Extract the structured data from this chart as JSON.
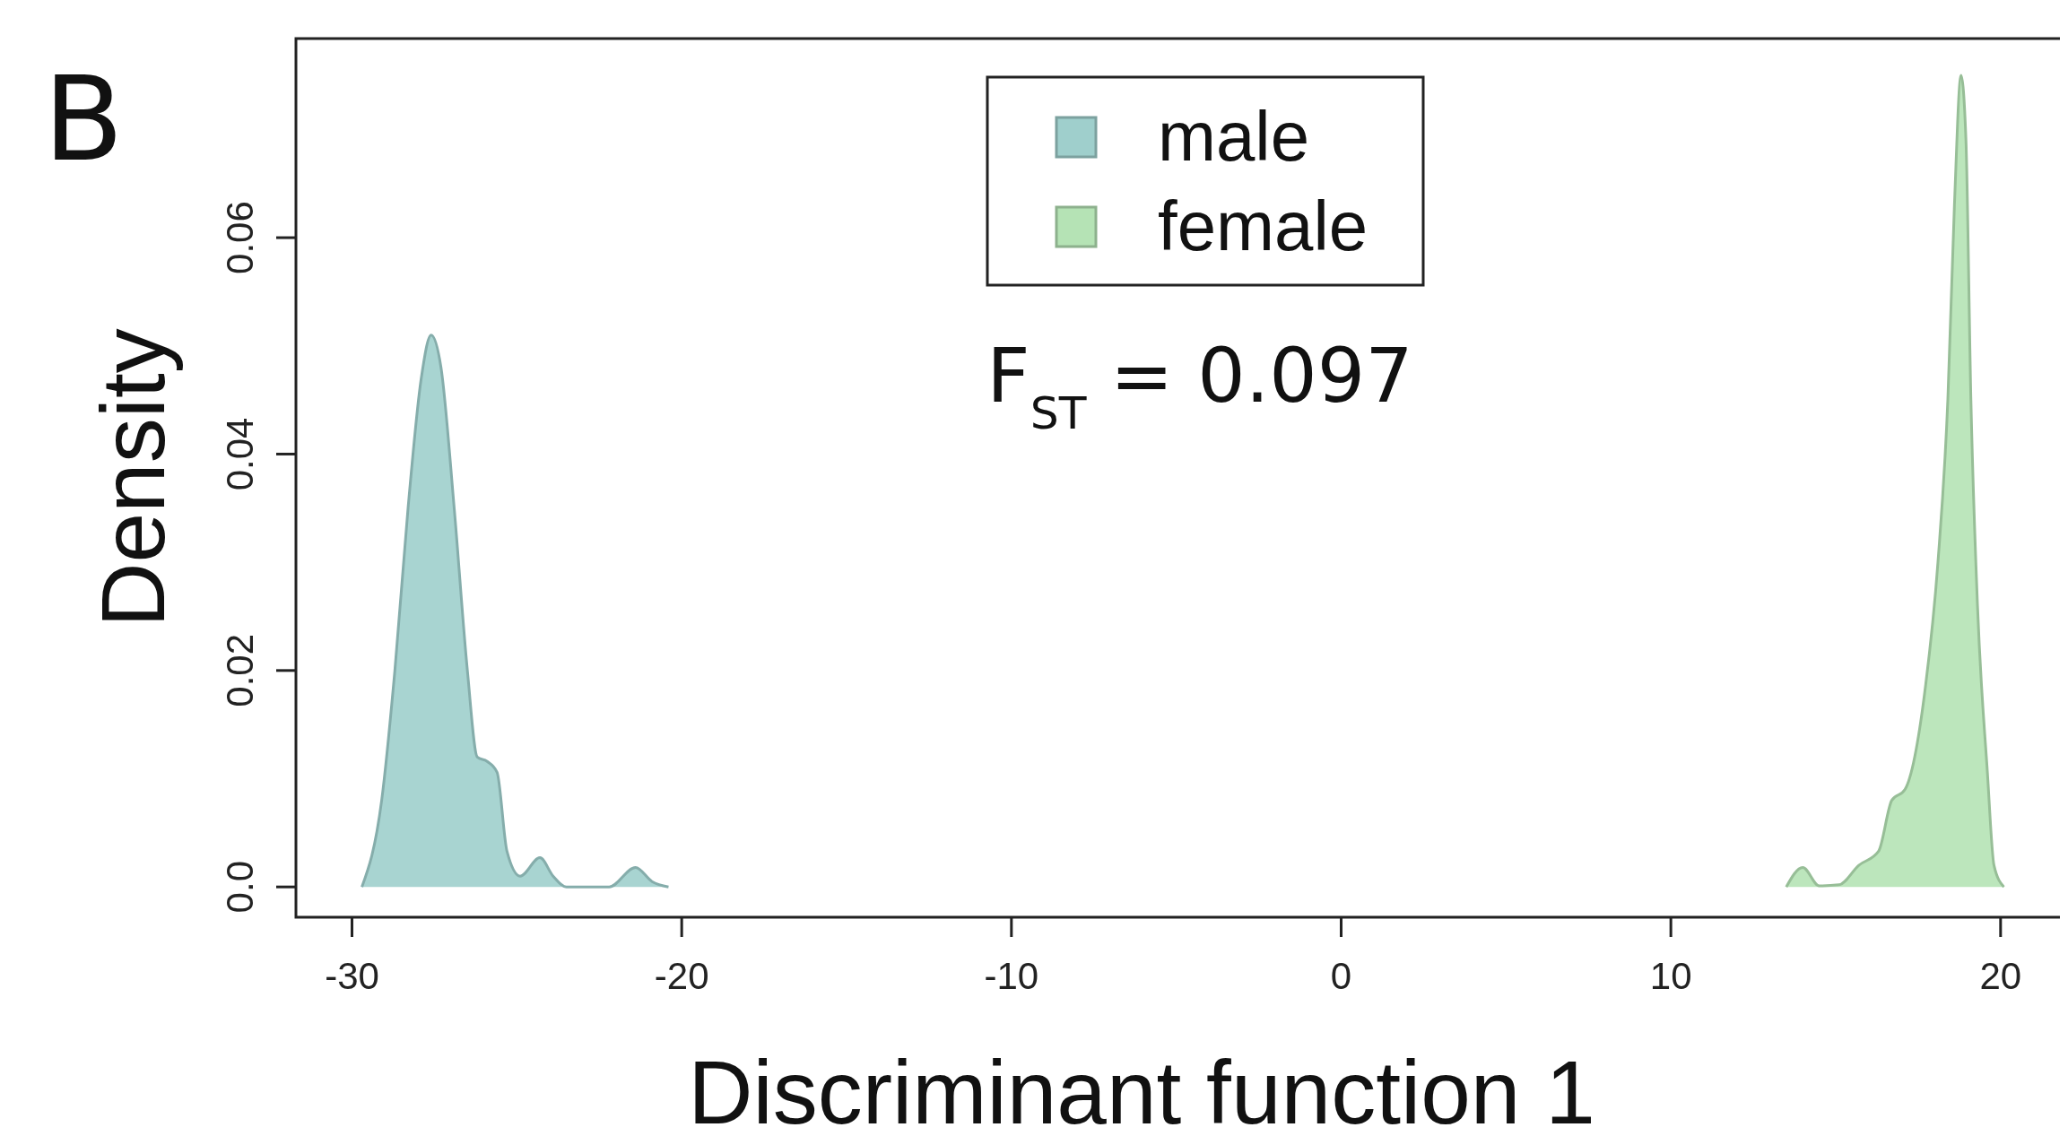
{
  "chart_data": {
    "type": "area",
    "xlabel": "Discriminant function 1",
    "ylabel": "Density",
    "annotations": [
      "B",
      "F$_{ST}$ = 0.097"
    ],
    "xlim": [
      -31.7,
      21.8
    ],
    "ylim": [
      -0.0028,
      0.0784
    ],
    "xticks": [
      -30,
      -20,
      -10,
      0,
      10,
      20
    ],
    "yticks": [
      {
        "value": 0,
        "label": "0.0"
      },
      0.02,
      0.04,
      0.06
    ],
    "legend": "top",
    "grid": false,
    "series": [
      {
        "name": "male",
        "color": "#9fcfcc",
        "x": [
          -29.7,
          -29.1,
          -28.7,
          -28.3,
          -27.9,
          -27.6,
          -27.3,
          -26.9,
          -26.5,
          -26.2,
          -25.9,
          -25.6,
          -25.3,
          -24.9,
          -24.3,
          -23.9,
          -23.5,
          -22.2,
          -21.4,
          -20.9,
          -20.4
        ],
        "values": [
          0,
          0.008,
          0.02,
          0.035,
          0.047,
          0.051,
          0.048,
          0.035,
          0.02,
          0.012,
          0.0116,
          0.0106,
          0.0033,
          0.001,
          0.0027,
          0.001,
          0,
          0,
          0.0018,
          0.0005,
          0
        ]
      },
      {
        "name": "female",
        "color": "#b5e3b5",
        "x": [
          13.5,
          14.0,
          14.5,
          15.1,
          15.7,
          16.3,
          16.7,
          17.1,
          17.7,
          18.1,
          18.4,
          18.6,
          18.8,
          18.95,
          19.1,
          19.3,
          19.6,
          19.8,
          20.1
        ],
        "values": [
          0,
          0.0018,
          0.0001,
          0.0002,
          0.002,
          0.0033,
          0.008,
          0.009,
          0.018,
          0.03,
          0.045,
          0.063,
          0.075,
          0.069,
          0.045,
          0.026,
          0.0106,
          0.002,
          0
        ]
      }
    ]
  }
}
